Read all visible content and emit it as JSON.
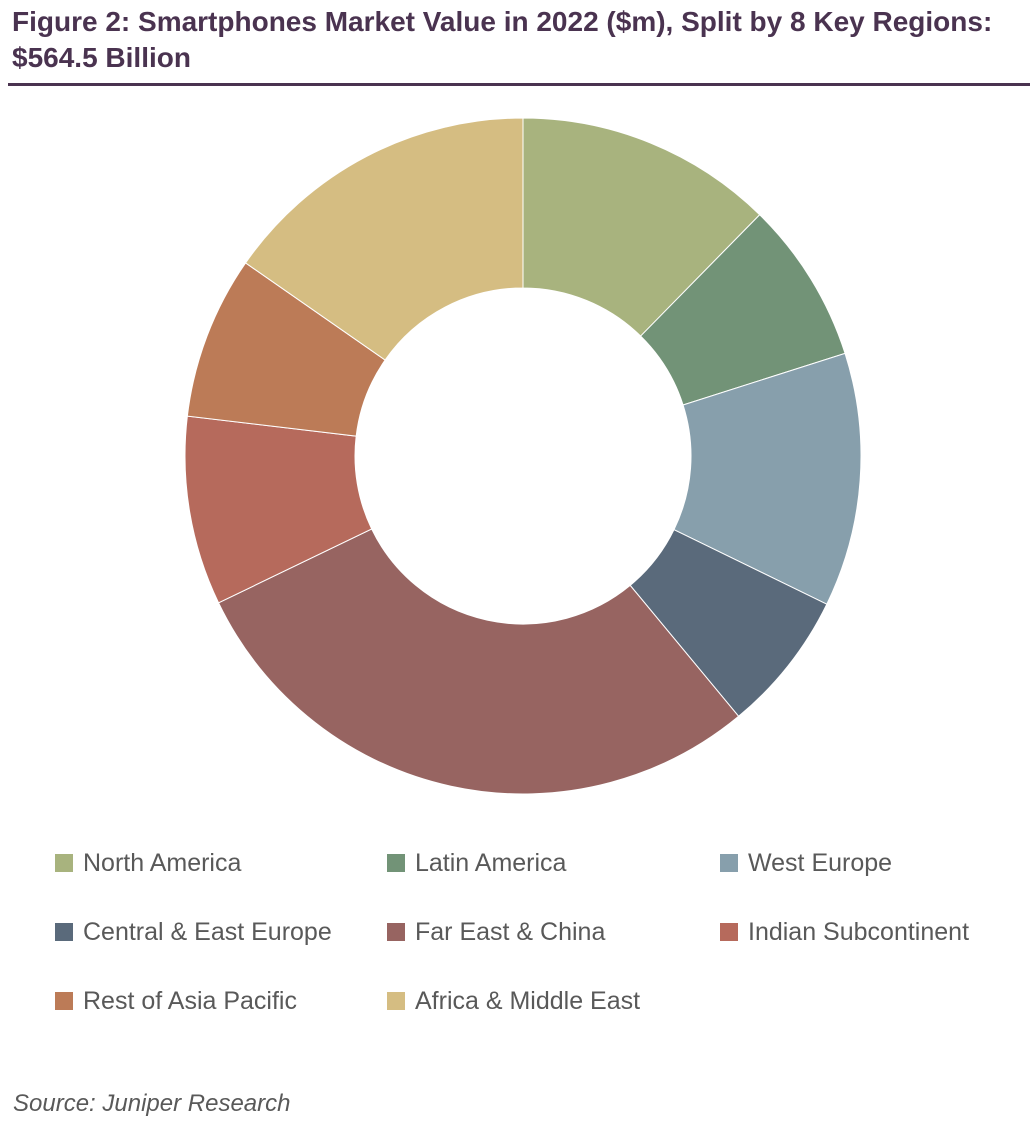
{
  "title": "Figure 2: Smartphones Market Value in 2022 ($m), Split by 8 Key Regions: $564.5 Billion",
  "source": "Source: Juniper Research",
  "chart_data": {
    "type": "pie",
    "variant": "donut",
    "title": "Figure 2: Smartphones Market Value in 2022 ($m), Split by 8 Key Regions: $564.5 Billion",
    "total": "$564.5 Billion",
    "legend_position": "bottom",
    "categories": [
      "North America",
      "Latin America",
      "West Europe",
      "Central & East Europe",
      "Far East & China",
      "Indian Subcontinent",
      "Rest of Asia Pacific",
      "Africa & Middle East"
    ],
    "values": [
      69.7,
      43.7,
      68.5,
      38.2,
      162.9,
      51.0,
      44.0,
      86.5
    ],
    "colors": [
      "#A8B37E",
      "#729377",
      "#879FAC",
      "#5A6A7B",
      "#976461",
      "#B66A5C",
      "#BC7B57",
      "#D5BD82"
    ]
  }
}
